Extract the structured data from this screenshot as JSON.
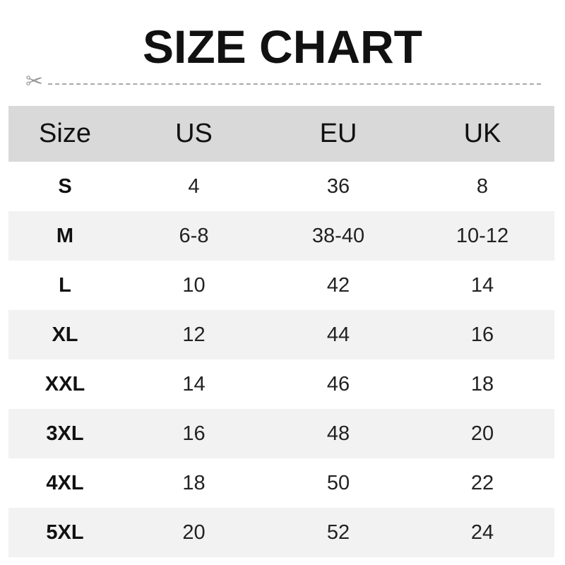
{
  "title": "SIZE CHART",
  "headers": [
    "Size",
    "US",
    "EU",
    "UK"
  ],
  "rows": [
    [
      "S",
      "4",
      "36",
      "8"
    ],
    [
      "M",
      "6-8",
      "38-40",
      "10-12"
    ],
    [
      "L",
      "10",
      "42",
      "14"
    ],
    [
      "XL",
      "12",
      "44",
      "16"
    ],
    [
      "XXL",
      "14",
      "46",
      "18"
    ],
    [
      "3XL",
      "16",
      "48",
      "20"
    ],
    [
      "4XL",
      "18",
      "50",
      "22"
    ],
    [
      "5XL",
      "20",
      "52",
      "24"
    ]
  ],
  "colors": {
    "header_bg": "#d9d9d9",
    "stripe_bg": "#f2f2f2",
    "dash": "#aaaaaa"
  },
  "icons": {
    "cut_line": "scissors-icon"
  }
}
